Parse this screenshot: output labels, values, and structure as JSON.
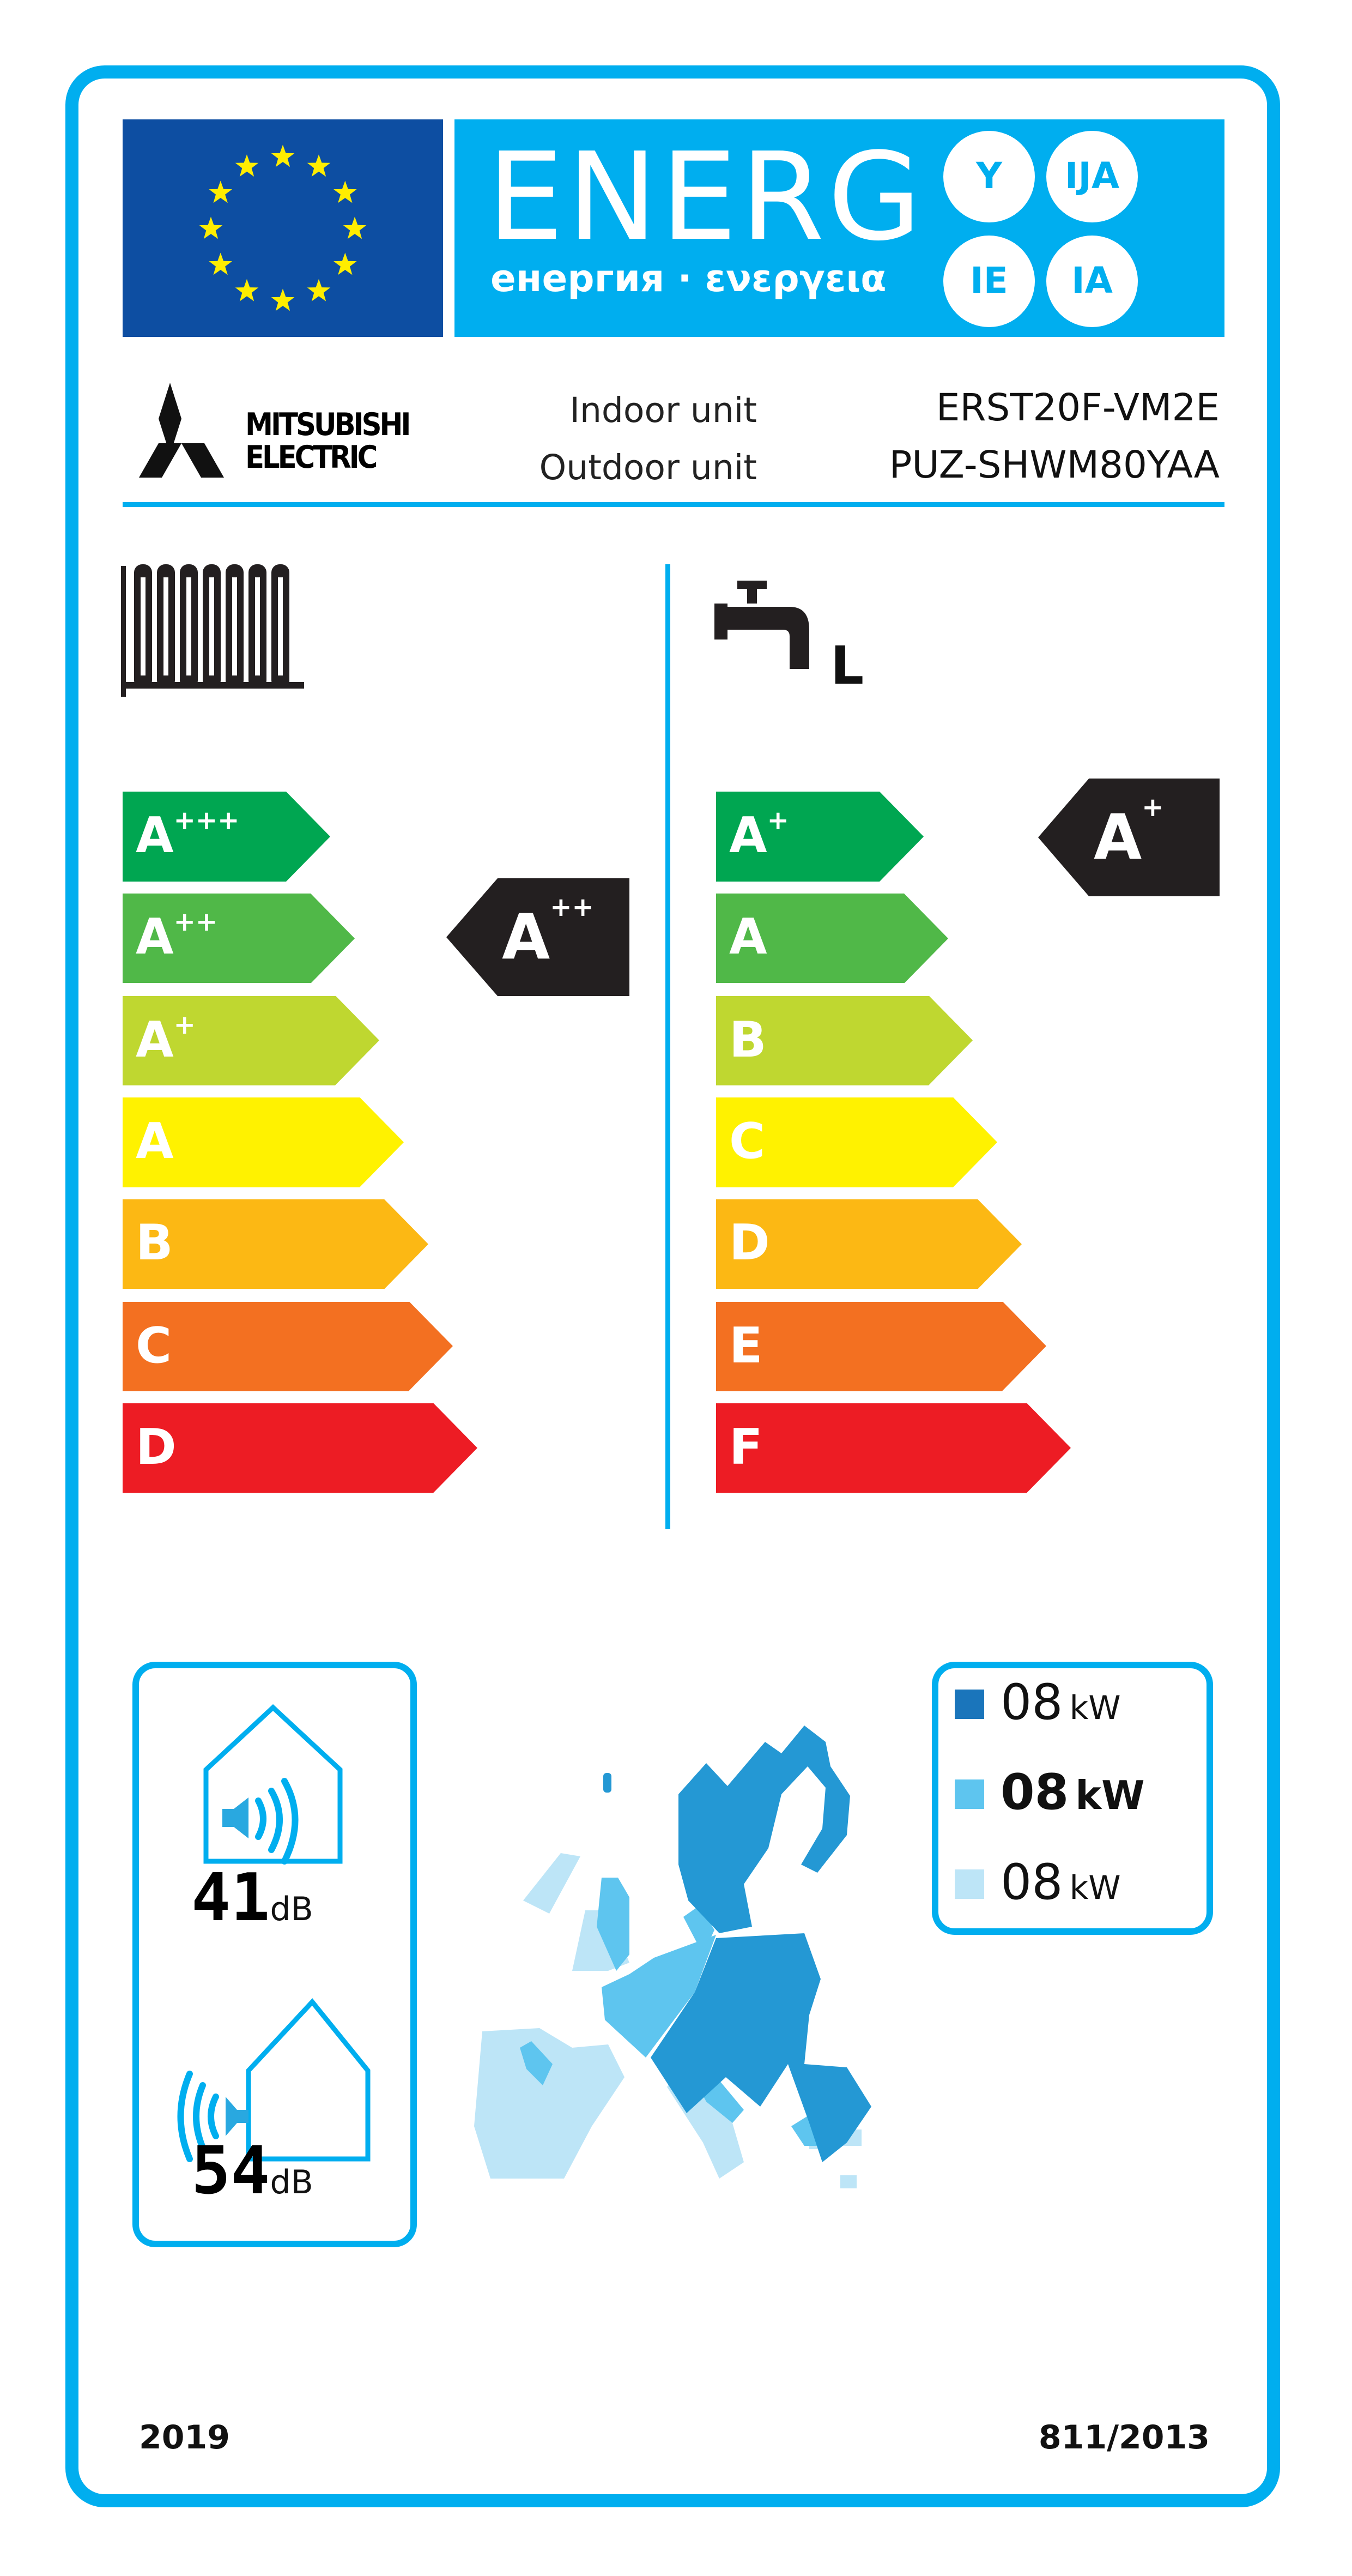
{
  "header": {
    "energy_word": "ENERG",
    "energy_subtitle": "енергия · ενεργεια",
    "language_badges": [
      "Y",
      "IJA",
      "IE",
      "IA"
    ],
    "brand": {
      "line1": "MITSUBISHI",
      "line2": "ELECTRIC"
    },
    "indoor_label": "Indoor unit",
    "outdoor_label": "Outdoor unit",
    "indoor_model": "ERST20F-VM2E",
    "outdoor_model": "PUZ-SHWM80YAA"
  },
  "space_heating": {
    "icon": "radiator-icon",
    "classes": [
      {
        "letter": "A",
        "plus": "+++",
        "color": "#00a651"
      },
      {
        "letter": "A",
        "plus": "++",
        "color": "#50b848"
      },
      {
        "letter": "A",
        "plus": "+",
        "color": "#bfd730"
      },
      {
        "letter": "A",
        "plus": "",
        "color": "#fff200"
      },
      {
        "letter": "B",
        "plus": "",
        "color": "#fcb814"
      },
      {
        "letter": "C",
        "plus": "",
        "color": "#f37021"
      },
      {
        "letter": "D",
        "plus": "",
        "color": "#ed1c24"
      }
    ],
    "rating": {
      "letter": "A",
      "plus": "++",
      "class_index": 1
    }
  },
  "water_heating": {
    "icon": "tap-icon",
    "load_profile": "L",
    "classes": [
      {
        "letter": "A",
        "plus": "+",
        "color": "#00a651"
      },
      {
        "letter": "A",
        "plus": "",
        "color": "#50b848"
      },
      {
        "letter": "B",
        "plus": "",
        "color": "#bfd730"
      },
      {
        "letter": "C",
        "plus": "",
        "color": "#fff200"
      },
      {
        "letter": "D",
        "plus": "",
        "color": "#fcb814"
      },
      {
        "letter": "E",
        "plus": "",
        "color": "#f37021"
      },
      {
        "letter": "F",
        "plus": "",
        "color": "#ed1c24"
      }
    ],
    "rating": {
      "letter": "A",
      "plus": "+",
      "class_index": 0
    }
  },
  "noise": {
    "indoor": {
      "value": "41",
      "unit": "dB"
    },
    "outdoor": {
      "value": "54",
      "unit": "dB"
    }
  },
  "heat_output": [
    {
      "value": "08",
      "unit": "kW",
      "zone_color": "#1a75bb",
      "bold": false
    },
    {
      "value": "08",
      "unit": "kW",
      "zone_color": "#5ec5ef",
      "bold": true
    },
    {
      "value": "08",
      "unit": "kW",
      "zone_color": "#bde5f7",
      "bold": false
    }
  ],
  "footer": {
    "year": "2019",
    "regulation": "811/2013"
  },
  "colors": {
    "accent": "#00aeef",
    "eu_blue": "#0d4ea2",
    "star_yellow": "#ffed00",
    "indicator": "#231f20"
  }
}
